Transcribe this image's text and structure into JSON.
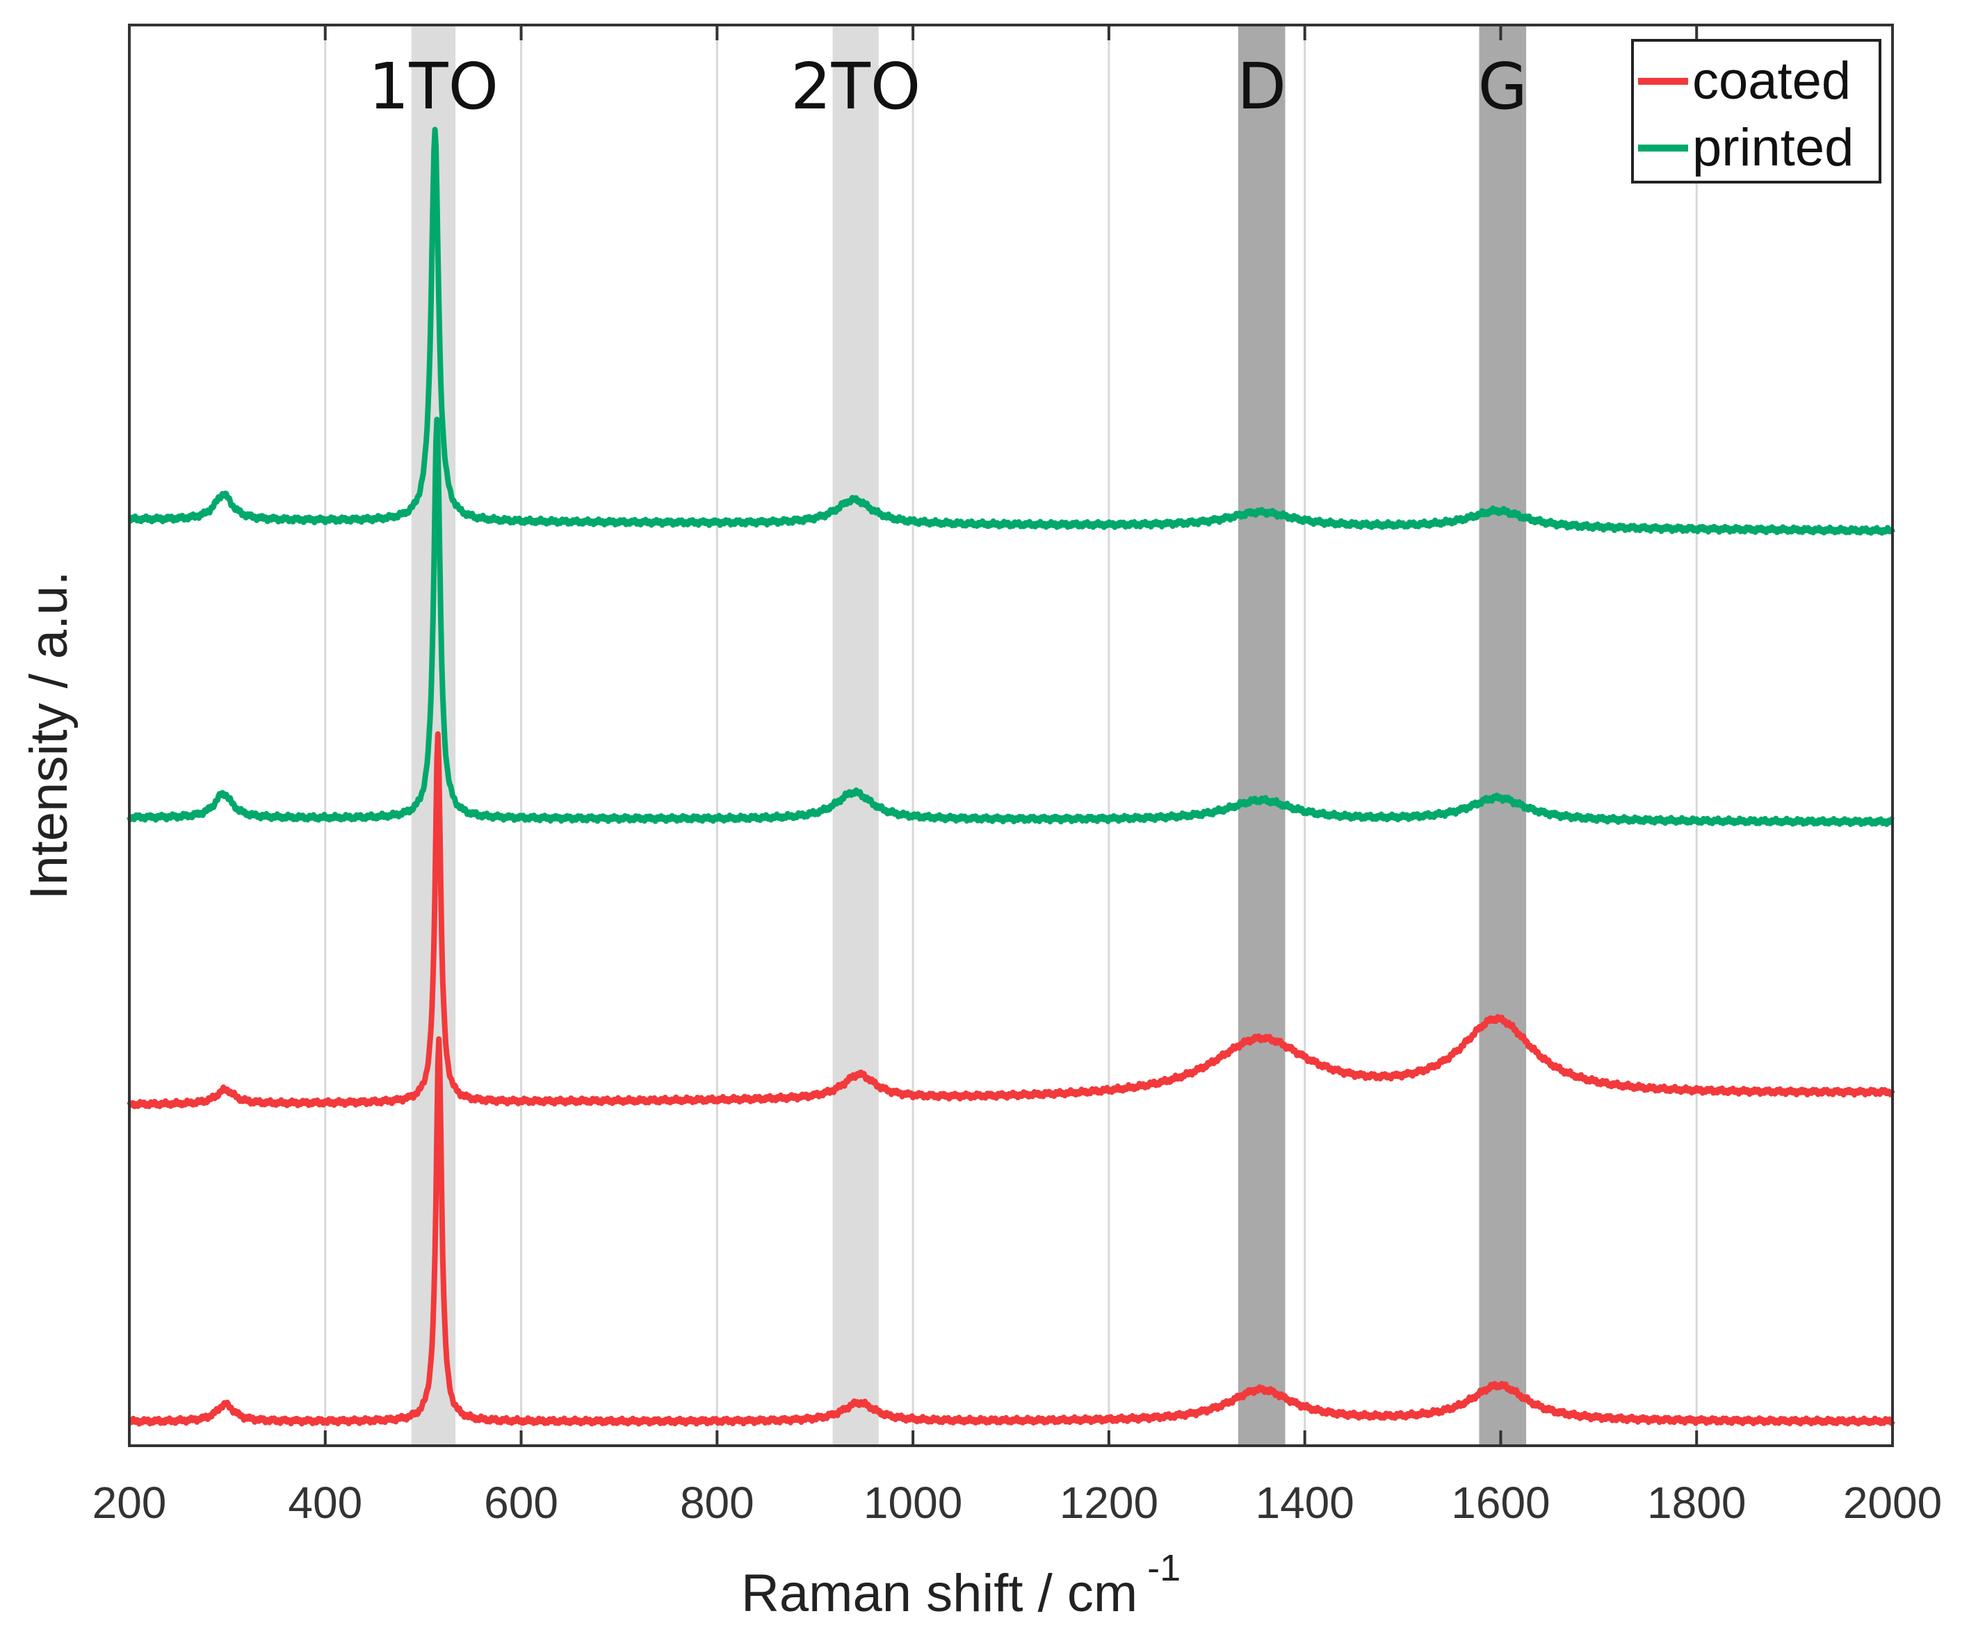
{
  "chart_data": {
    "type": "line",
    "title": "",
    "xlabel": "Raman shift / cm",
    "xlabel_superscript": "-1",
    "ylabel": "Intensity / a.u.",
    "xlim": [
      200,
      2000
    ],
    "ylim": [
      0,
      1
    ],
    "xticks": [
      200,
      400,
      600,
      800,
      1000,
      1200,
      1400,
      1600,
      1800,
      2000
    ],
    "xtick_labels": [
      "200",
      "400",
      "600",
      "800",
      "1000",
      "1200",
      "1400",
      "1600",
      "1800",
      "2000"
    ],
    "yticks_shown": false,
    "grid": "vertical",
    "legend_position": "top-right",
    "colors": {
      "coated": "#f2393b",
      "printed": "#00a86b",
      "band_light": "#dcdcdc",
      "band_dark": "#a9a9a9",
      "grid": "#d8d8d8",
      "axes": "#333333"
    },
    "legend": [
      {
        "name": "coated",
        "color": "#f2393b"
      },
      {
        "name": "printed",
        "color": "#00a86b"
      }
    ],
    "bands": [
      {
        "label": "1TO",
        "x_range": [
          488,
          533
        ],
        "shade": "light"
      },
      {
        "label": "2TO",
        "x_range": [
          918,
          965
        ],
        "shade": "light"
      },
      {
        "label": "D",
        "x_range": [
          1332,
          1380
        ],
        "shade": "dark"
      },
      {
        "label": "G",
        "x_range": [
          1578,
          1626
        ],
        "shade": "dark"
      }
    ],
    "series": [
      {
        "name": "coated",
        "color": "#f2393b",
        "baseline": 0.017,
        "slope": 0.0,
        "peaks": [
          {
            "x": 298,
            "height": 0.012,
            "width": 22
          },
          {
            "x": 516,
            "height": 0.27,
            "width": 7
          },
          {
            "x": 945,
            "height": 0.013,
            "width": 40
          },
          {
            "x": 1355,
            "height": 0.022,
            "width": 80
          },
          {
            "x": 1598,
            "height": 0.025,
            "width": 70
          }
        ]
      },
      {
        "name": "coated",
        "color": "#f2393b",
        "baseline": 0.24,
        "slope": 0.008,
        "peaks": [
          {
            "x": 298,
            "height": 0.01,
            "width": 22
          },
          {
            "x": 515,
            "height": 0.26,
            "width": 7
          },
          {
            "x": 945,
            "height": 0.017,
            "width": 40
          },
          {
            "x": 1355,
            "height": 0.04,
            "width": 120
          },
          {
            "x": 1596,
            "height": 0.052,
            "width": 90
          }
        ]
      },
      {
        "name": "printed",
        "color": "#00a86b",
        "baseline": 0.442,
        "slope": -0.003,
        "peaks": [
          {
            "x": 296,
            "height": 0.017,
            "width": 22
          },
          {
            "x": 514,
            "height": 0.28,
            "width": 8
          },
          {
            "x": 940,
            "height": 0.019,
            "width": 45
          },
          {
            "x": 1355,
            "height": 0.014,
            "width": 80
          },
          {
            "x": 1597,
            "height": 0.016,
            "width": 70
          }
        ]
      },
      {
        "name": "printed",
        "color": "#00a86b",
        "baseline": 0.652,
        "slope": -0.008,
        "peaks": [
          {
            "x": 296,
            "height": 0.018,
            "width": 22
          },
          {
            "x": 512,
            "height": 0.275,
            "width": 9
          },
          {
            "x": 940,
            "height": 0.017,
            "width": 45
          },
          {
            "x": 1355,
            "height": 0.01,
            "width": 80
          },
          {
            "x": 1597,
            "height": 0.012,
            "width": 70
          }
        ]
      }
    ]
  }
}
